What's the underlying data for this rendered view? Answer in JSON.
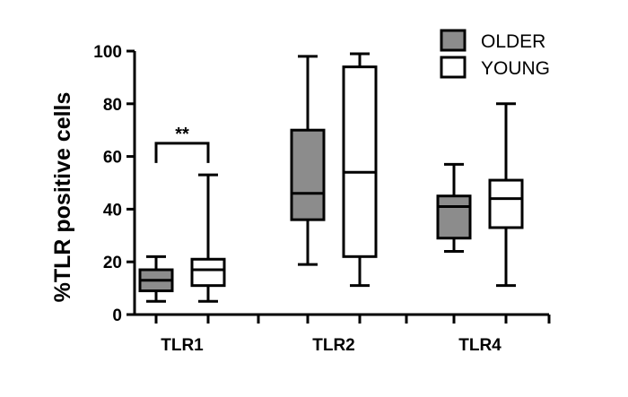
{
  "chart_data": {
    "type": "box",
    "ylabel": "%TLR positive cells",
    "ylim": [
      0,
      100
    ],
    "yticks": [
      0,
      20,
      40,
      60,
      80,
      100
    ],
    "categories": [
      "TLR1",
      "TLR2",
      "TLR4"
    ],
    "legend": {
      "placement": "top-right"
    },
    "series": [
      {
        "name": "OLDER",
        "color": "#8c8c8c",
        "boxes": [
          {
            "min": 5,
            "q1": 9,
            "median": 13,
            "q3": 17,
            "max": 22
          },
          {
            "min": 19,
            "q1": 36,
            "median": 46,
            "q3": 70,
            "max": 98
          },
          {
            "min": 24,
            "q1": 29,
            "median": 41,
            "q3": 45,
            "max": 57
          }
        ]
      },
      {
        "name": "YOUNG",
        "color": "#ffffff",
        "boxes": [
          {
            "min": 5,
            "q1": 11,
            "median": 17,
            "q3": 21,
            "max": 53
          },
          {
            "min": 11,
            "q1": 22,
            "median": 54,
            "q3": 94,
            "max": 99
          },
          {
            "min": 11,
            "q1": 33,
            "median": 44,
            "q3": 51,
            "max": 80
          }
        ]
      }
    ],
    "annotations": [
      {
        "text": "**",
        "category": "TLR1",
        "type": "significance-bracket",
        "y": 65
      }
    ]
  }
}
